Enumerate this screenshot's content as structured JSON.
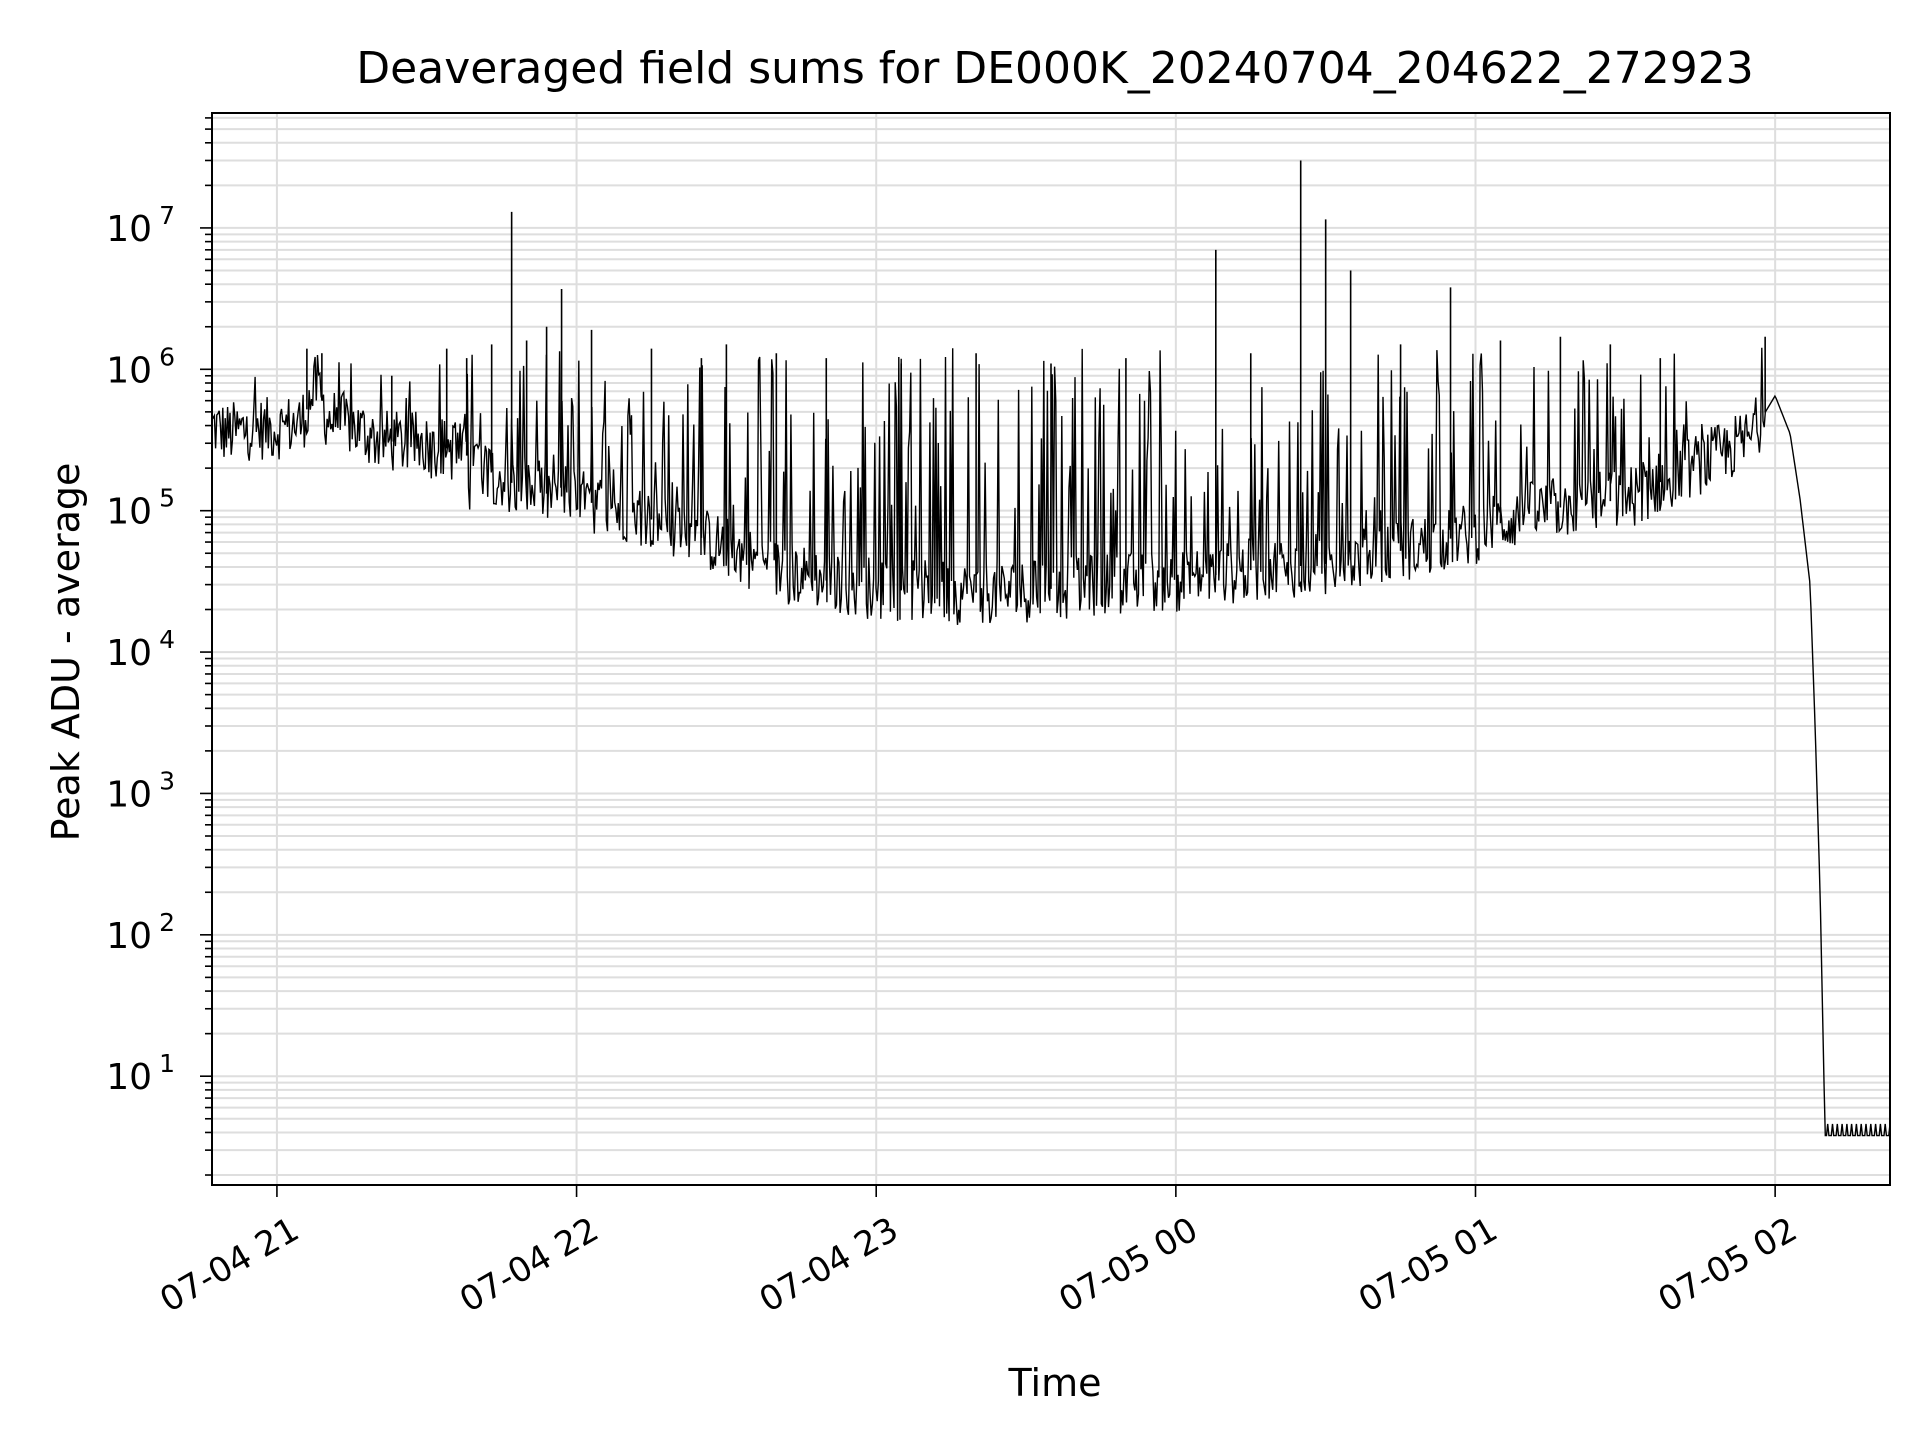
{
  "chart_data": {
    "type": "line",
    "title": "Deaveraged field sums for DE000K_20240704_204622_272923",
    "xlabel": "Time",
    "ylabel": "Peak ADU - average",
    "yscale": "log",
    "ylim": [
      1.7,
      65000000
    ],
    "xlim": [
      "2024-07-04 20:47",
      "2024-07-05 02:23"
    ],
    "grid": true,
    "line_color": "#000000",
    "x_ticks": [
      {
        "time": "2024-07-04 21:00",
        "label": "07-04 21"
      },
      {
        "time": "2024-07-04 22:00",
        "label": "07-04 22"
      },
      {
        "time": "2024-07-04 23:00",
        "label": "07-04 23"
      },
      {
        "time": "2024-07-05 00:00",
        "label": "07-05 00"
      },
      {
        "time": "2024-07-05 01:00",
        "label": "07-05 01"
      },
      {
        "time": "2024-07-05 02:00",
        "label": "07-05 02"
      }
    ],
    "y_ticks": [
      {
        "value": 10,
        "base": "10",
        "exp": "1"
      },
      {
        "value": 100,
        "base": "10",
        "exp": "2"
      },
      {
        "value": 1000,
        "base": "10",
        "exp": "3"
      },
      {
        "value": 10000,
        "base": "10",
        "exp": "4"
      },
      {
        "value": 100000,
        "base": "10",
        "exp": "5"
      },
      {
        "value": 1000000,
        "base": "10",
        "exp": "6"
      },
      {
        "value": 10000000,
        "base": "10",
        "exp": "7"
      }
    ],
    "series": [
      {
        "x": [
          "2024-07-04 20:47",
          "2024-07-04 20:50",
          "2024-07-04 20:55",
          "2024-07-04 21:00",
          "2024-07-04 21:05",
          "2024-07-04 21:08",
          "2024-07-04 21:10",
          "2024-07-04 21:15",
          "2024-07-04 21:20",
          "2024-07-04 21:25",
          "2024-07-04 21:30",
          "2024-07-04 21:35",
          "2024-07-04 21:40",
          "2024-07-04 21:45",
          "2024-07-04 21:50",
          "2024-07-04 21:55",
          "2024-07-04 22:00",
          "2024-07-04 22:10",
          "2024-07-04 22:20",
          "2024-07-04 22:30",
          "2024-07-04 22:40",
          "2024-07-04 22:50",
          "2024-07-04 23:00",
          "2024-07-04 23:15",
          "2024-07-04 23:30",
          "2024-07-04 23:45",
          "2024-07-05 00:00",
          "2024-07-05 00:15",
          "2024-07-05 00:30",
          "2024-07-05 00:45",
          "2024-07-05 01:00",
          "2024-07-05 01:10",
          "2024-07-05 01:20",
          "2024-07-05 01:30",
          "2024-07-05 01:40",
          "2024-07-05 01:50",
          "2024-07-05 01:55",
          "2024-07-05 02:00",
          "2024-07-05 02:03",
          "2024-07-05 02:05",
          "2024-07-05 02:07",
          "2024-07-05 02:08",
          "2024-07-05 02:09",
          "2024-07-05 02:10",
          "2024-07-05 02:11",
          "2024-07-05 02:23"
        ],
        "y": [
          400000,
          350000,
          380000,
          380000,
          420000,
          800000,
          450000,
          400000,
          320000,
          300000,
          300000,
          270000,
          230000,
          170000,
          140000,
          130000,
          120000,
          100000,
          75000,
          55000,
          38000,
          32000,
          28000,
          26000,
          27000,
          30000,
          32000,
          38000,
          42000,
          52000,
          70000,
          95000,
          110000,
          120000,
          180000,
          260000,
          330000,
          650000,
          350000,
          120000,
          30000,
          3000,
          200,
          3.8,
          3.8,
          3.8
        ]
      }
    ],
    "spikes": [
      {
        "x": "2024-07-04 21:06",
        "y": 1400000
      },
      {
        "x": "2024-07-04 21:09",
        "y": 1300000
      },
      {
        "x": "2024-07-04 21:23",
        "y": 900000
      },
      {
        "x": "2024-07-04 21:34",
        "y": 1400000
      },
      {
        "x": "2024-07-04 21:38",
        "y": 1200000
      },
      {
        "x": "2024-07-04 21:43",
        "y": 1500000
      },
      {
        "x": "2024-07-04 21:47",
        "y": 13000000
      },
      {
        "x": "2024-07-04 21:50",
        "y": 1600000
      },
      {
        "x": "2024-07-04 21:54",
        "y": 2000000
      },
      {
        "x": "2024-07-04 21:57",
        "y": 3700000
      },
      {
        "x": "2024-07-04 22:03",
        "y": 1900000
      },
      {
        "x": "2024-07-04 22:15",
        "y": 1400000
      },
      {
        "x": "2024-07-04 22:25",
        "y": 1200000
      },
      {
        "x": "2024-07-04 22:30",
        "y": 1500000
      },
      {
        "x": "2024-07-04 22:40",
        "y": 1300000
      },
      {
        "x": "2024-07-04 22:50",
        "y": 1200000
      },
      {
        "x": "2024-07-04 23:05",
        "y": 1100000
      },
      {
        "x": "2024-07-04 23:20",
        "y": 1300000
      },
      {
        "x": "2024-07-04 23:35",
        "y": 1100000
      },
      {
        "x": "2024-07-04 23:50",
        "y": 1200000
      },
      {
        "x": "2024-07-05 00:08",
        "y": 7000000
      },
      {
        "x": "2024-07-05 00:15",
        "y": 1300000
      },
      {
        "x": "2024-07-05 00:25",
        "y": 30000000
      },
      {
        "x": "2024-07-05 00:30",
        "y": 11500000
      },
      {
        "x": "2024-07-05 00:35",
        "y": 5000000
      },
      {
        "x": "2024-07-05 00:45",
        "y": 1500000
      },
      {
        "x": "2024-07-05 00:55",
        "y": 3800000
      },
      {
        "x": "2024-07-05 01:05",
        "y": 1600000
      },
      {
        "x": "2024-07-05 01:17",
        "y": 1700000
      },
      {
        "x": "2024-07-05 01:27",
        "y": 1500000
      },
      {
        "x": "2024-07-05 01:37",
        "y": 1200000
      },
      {
        "x": "2024-07-05 01:58",
        "y": 1700000
      }
    ]
  }
}
